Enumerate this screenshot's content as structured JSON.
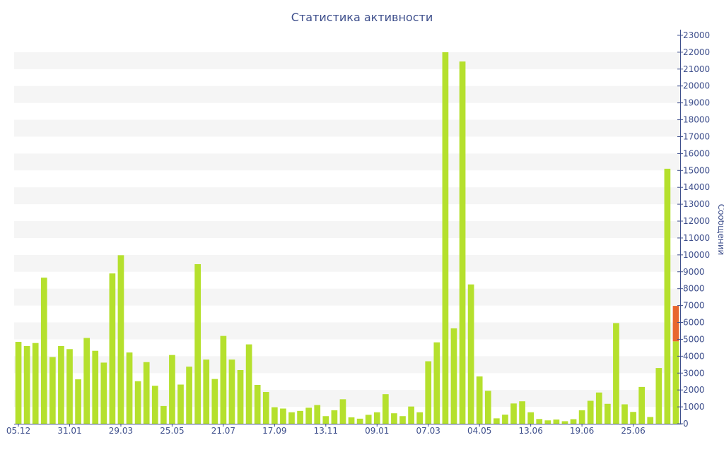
{
  "chart_data": {
    "type": "bar",
    "title": "Статистика активности",
    "ylabel": "Сообщений",
    "xlabel": "",
    "ylim": [
      0,
      23000
    ],
    "y_ticks": [
      0,
      1000,
      2000,
      3000,
      4000,
      5000,
      6000,
      7000,
      8000,
      9000,
      10000,
      11000,
      12000,
      13000,
      14000,
      15000,
      16000,
      17000,
      18000,
      19000,
      20000,
      21000,
      22000,
      23000
    ],
    "x_tick_labels": [
      {
        "index": 0,
        "label": "05.12"
      },
      {
        "index": 6,
        "label": "31.01"
      },
      {
        "index": 12,
        "label": "29.03"
      },
      {
        "index": 18,
        "label": "25.05"
      },
      {
        "index": 24,
        "label": "21.07"
      },
      {
        "index": 30,
        "label": "17.09"
      },
      {
        "index": 36,
        "label": "13.11"
      },
      {
        "index": 42,
        "label": "09.01"
      },
      {
        "index": 48,
        "label": "07.03"
      },
      {
        "index": 54,
        "label": "04.05"
      },
      {
        "index": 60,
        "label": "13.06"
      },
      {
        "index": 66,
        "label": "19.06"
      },
      {
        "index": 72,
        "label": "25.06"
      }
    ],
    "bar_color": "#b5e02d",
    "highlight_color": "#e8672e",
    "grid": "alternating horizontal bands",
    "values": [
      4850,
      4600,
      4780,
      8650,
      3950,
      4600,
      4420,
      2630,
      5080,
      4320,
      3620,
      8900,
      9980,
      4220,
      2520,
      3650,
      2250,
      1050,
      4070,
      2320,
      3380,
      9450,
      3800,
      2650,
      5200,
      3800,
      3180,
      4700,
      2300,
      1880,
      980,
      900,
      680,
      760,
      950,
      1110,
      450,
      800,
      1450,
      380,
      300,
      530,
      680,
      1750,
      620,
      450,
      1020,
      680,
      3700,
      4820,
      22000,
      5650,
      21450,
      8250,
      2800,
      1950,
      320,
      540,
      1200,
      1330,
      680,
      280,
      200,
      250,
      150,
      270,
      800,
      1360,
      1850,
      1180,
      5960,
      1150,
      700,
      2180,
      400,
      3300,
      15100,
      4880
    ],
    "highlight": {
      "index": 77,
      "from": 4880,
      "to": 6980
    }
  }
}
